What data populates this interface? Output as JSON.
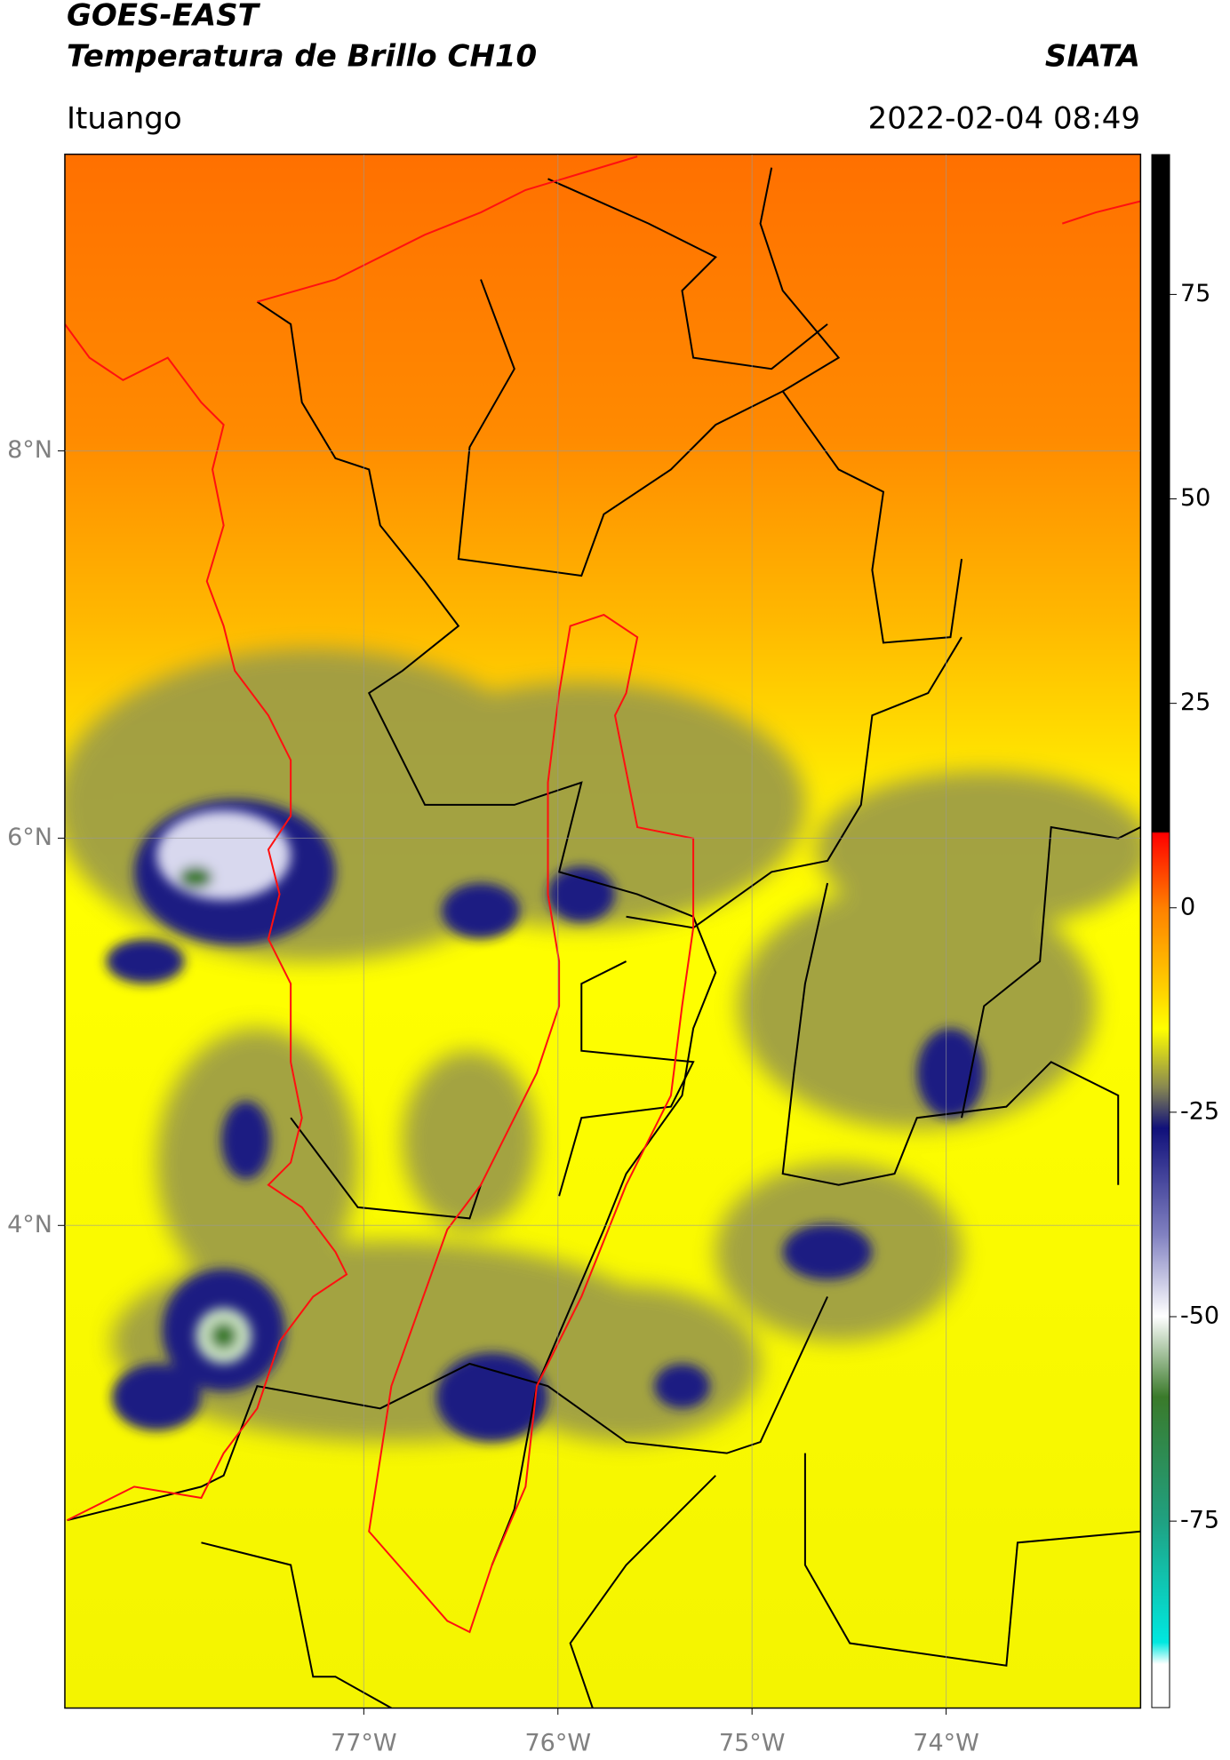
{
  "header": {
    "title": "GOES-EAST",
    "subtitle": "Temperatura de Brillo CH10",
    "source": "SIATA",
    "location": "Ituango",
    "datetime": "2022-02-04 08:49"
  },
  "map": {
    "xlim": [
      -78.54,
      -73.0
    ],
    "ylim": [
      1.51,
      9.53
    ],
    "xticks": [
      {
        "value": -77,
        "label": "77°W"
      },
      {
        "value": -76,
        "label": "76°W"
      },
      {
        "value": -75,
        "label": "75°W"
      },
      {
        "value": -74,
        "label": "74°W"
      }
    ],
    "yticks": [
      {
        "value": 8,
        "label": "8°N"
      },
      {
        "value": 6,
        "label": "6°N"
      },
      {
        "value": 4,
        "label": "4°N"
      }
    ],
    "grid": true
  },
  "colorbar": {
    "lim": [
      -97.8,
      92.1
    ],
    "ticks": [
      -75,
      -50,
      -25,
      0,
      25,
      50,
      75
    ]
  }
}
